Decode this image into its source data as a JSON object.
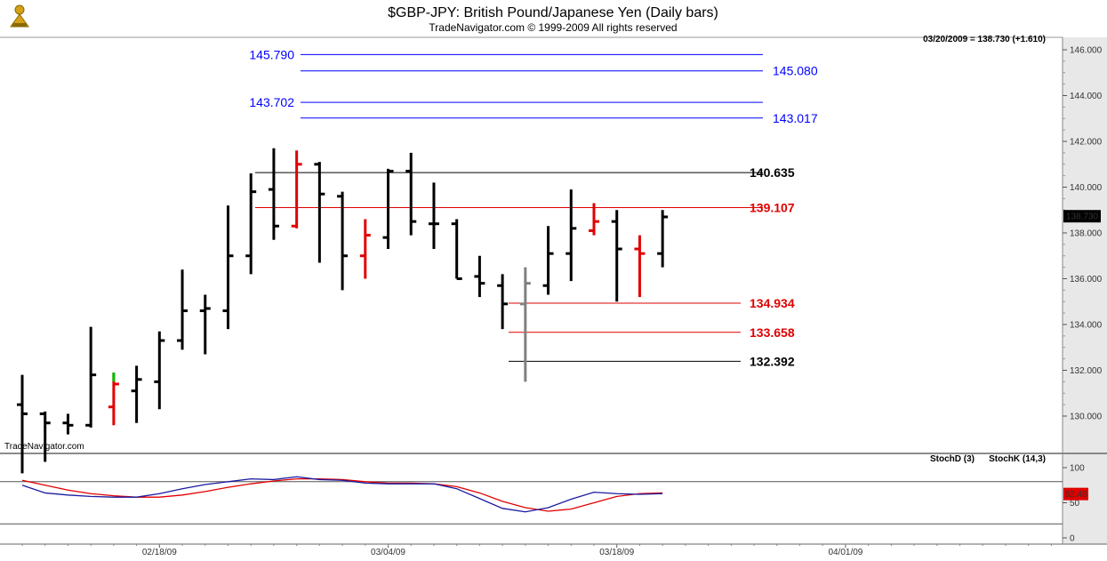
{
  "header": {
    "title": "$GBP-JPY:  British Pound/Japanese Yen  (Daily bars)",
    "copyright": "TradeNavigator.com © 1999-2009 All rights reserved",
    "last_quote": "03/20/2009 = 138.730 (+1.610)",
    "watermark": "TradeNavigator.com"
  },
  "colors": {
    "background": "#ffffff",
    "price_axis_bg": "#e8e8e8",
    "bar_black": "#000000",
    "bar_red": "#e00000",
    "bar_gray": "#808080",
    "bar_green": "#00c000",
    "blue_level": "#0000ff",
    "red_level": "#e00000",
    "black_level": "#000000",
    "stoch_d": "#e00000",
    "stoch_k": "#1a1aa0"
  },
  "chart_data": [
    {
      "type": "ohlc",
      "ylim": [
        128,
        146.5
      ],
      "y_ticks": [
        "130.000",
        "132.000",
        "134.000",
        "136.000",
        "138.000",
        "140.000",
        "142.000",
        "144.000",
        "146.000"
      ],
      "y_tick_values": [
        130,
        132,
        134,
        136,
        138,
        140,
        142,
        144,
        146
      ],
      "x_ticks": [
        "02/18/09",
        "03/04/09",
        "03/18/09",
        "04/01/09"
      ],
      "last_price_label": "138.730",
      "bars": [
        {
          "o": 130.5,
          "h": 131.8,
          "l": 127.5,
          "c": 130.1,
          "color": "black"
        },
        {
          "o": 130.1,
          "h": 130.2,
          "l": 128.0,
          "c": 129.7,
          "color": "black"
        },
        {
          "o": 129.7,
          "h": 130.1,
          "l": 129.2,
          "c": 129.6,
          "color": "black"
        },
        {
          "o": 129.6,
          "h": 133.9,
          "l": 129.5,
          "c": 131.8,
          "color": "black"
        },
        {
          "o": 130.4,
          "h": 131.9,
          "l": 129.6,
          "c": 131.4,
          "color": "red",
          "high_green": true
        },
        {
          "o": 131.1,
          "h": 132.2,
          "l": 129.7,
          "c": 131.6,
          "color": "black"
        },
        {
          "o": 131.5,
          "h": 133.7,
          "l": 130.3,
          "c": 133.3,
          "color": "black"
        },
        {
          "o": 133.3,
          "h": 136.4,
          "l": 132.9,
          "c": 134.6,
          "color": "black"
        },
        {
          "o": 134.6,
          "h": 135.3,
          "l": 132.7,
          "c": 134.7,
          "color": "black"
        },
        {
          "o": 134.6,
          "h": 139.2,
          "l": 133.8,
          "c": 137.0,
          "color": "black"
        },
        {
          "o": 137.0,
          "h": 140.6,
          "l": 136.2,
          "c": 139.8,
          "color": "black"
        },
        {
          "o": 139.9,
          "h": 141.7,
          "l": 137.7,
          "c": 138.3,
          "color": "black"
        },
        {
          "o": 138.3,
          "h": 141.6,
          "l": 138.2,
          "c": 141.0,
          "color": "red"
        },
        {
          "o": 141.0,
          "h": 141.1,
          "l": 136.7,
          "c": 139.7,
          "color": "black"
        },
        {
          "o": 139.6,
          "h": 139.8,
          "l": 135.5,
          "c": 137.0,
          "color": "black"
        },
        {
          "o": 137.0,
          "h": 138.6,
          "l": 136.0,
          "c": 137.9,
          "color": "red"
        },
        {
          "o": 137.8,
          "h": 140.8,
          "l": 137.3,
          "c": 140.7,
          "color": "black"
        },
        {
          "o": 140.7,
          "h": 141.5,
          "l": 137.9,
          "c": 138.5,
          "color": "black"
        },
        {
          "o": 138.4,
          "h": 140.2,
          "l": 137.3,
          "c": 138.4,
          "color": "black"
        },
        {
          "o": 138.4,
          "h": 138.6,
          "l": 136.0,
          "c": 136.0,
          "color": "black"
        },
        {
          "o": 136.1,
          "h": 137.0,
          "l": 135.2,
          "c": 135.8,
          "color": "black"
        },
        {
          "o": 135.7,
          "h": 136.2,
          "l": 133.8,
          "c": 134.9,
          "color": "black"
        },
        {
          "o": 134.9,
          "h": 136.5,
          "l": 131.5,
          "c": 135.8,
          "color": "gray"
        },
        {
          "o": 135.7,
          "h": 138.3,
          "l": 135.3,
          "c": 137.1,
          "color": "black"
        },
        {
          "o": 137.1,
          "h": 139.9,
          "l": 135.9,
          "c": 138.2,
          "color": "black"
        },
        {
          "o": 138.1,
          "h": 139.3,
          "l": 137.9,
          "c": 138.5,
          "color": "red"
        },
        {
          "o": 138.5,
          "h": 139.0,
          "l": 135.0,
          "c": 137.3,
          "color": "black"
        },
        {
          "o": 137.3,
          "h": 137.9,
          "l": 135.2,
          "c": 137.1,
          "color": "red"
        },
        {
          "o": 137.1,
          "h": 139.0,
          "l": 136.5,
          "c": 138.7,
          "color": "black"
        }
      ],
      "levels": [
        {
          "value": 145.79,
          "label": "145.790",
          "color": "blue",
          "side": "left"
        },
        {
          "value": 145.08,
          "label": "145.080",
          "color": "blue",
          "side": "right"
        },
        {
          "value": 143.702,
          "label": "143.702",
          "color": "blue",
          "side": "left"
        },
        {
          "value": 143.017,
          "label": "143.017",
          "color": "blue",
          "side": "right"
        },
        {
          "value": 140.635,
          "label": "140.635",
          "color": "black",
          "side": "right"
        },
        {
          "value": 139.107,
          "label": "139.107",
          "color": "red",
          "side": "right"
        },
        {
          "value": 134.934,
          "label": "134.934",
          "color": "red",
          "side": "right"
        },
        {
          "value": 133.658,
          "label": "133.658",
          "color": "red",
          "side": "right"
        },
        {
          "value": 132.392,
          "label": "132.392",
          "color": "black",
          "side": "right"
        }
      ]
    },
    {
      "type": "line",
      "ylim": [
        0,
        110
      ],
      "y_ticks": [
        "0",
        "50",
        "100"
      ],
      "y_tick_values": [
        0,
        50,
        100
      ],
      "reference_lines": [
        20,
        80
      ],
      "legend": [
        "StochD (3)",
        "StochK (14,3)"
      ],
      "last_value_label": "62.48",
      "series": [
        {
          "name": "StochD (3)",
          "color": "red",
          "values": [
            82,
            75,
            68,
            63,
            60,
            58,
            58,
            61,
            66,
            72,
            77,
            81,
            84,
            84,
            83,
            80,
            78,
            78,
            77,
            73,
            64,
            52,
            43,
            38,
            41,
            50,
            59,
            63,
            64
          ]
        },
        {
          "name": "StochK (14,3)",
          "color": "blue",
          "values": [
            75,
            64,
            61,
            59,
            58,
            58,
            63,
            70,
            76,
            80,
            84,
            83,
            87,
            83,
            82,
            78,
            77,
            77,
            77,
            70,
            56,
            42,
            37,
            43,
            55,
            65,
            63,
            62,
            63
          ]
        }
      ]
    }
  ]
}
